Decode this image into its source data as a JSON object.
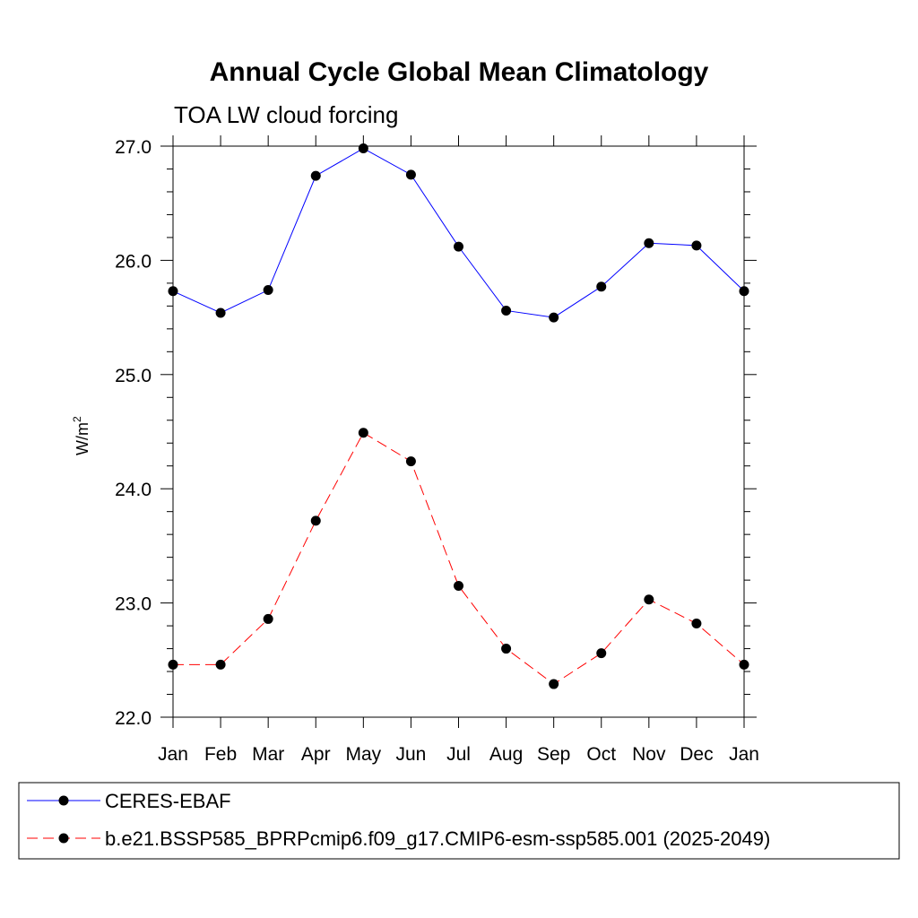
{
  "chart_data": {
    "type": "line",
    "title": "Annual Cycle Global Mean Climatology",
    "subtitle": "TOA LW cloud forcing",
    "ylabel": "W/m",
    "ylabel_superscript": "2",
    "xlabel": "",
    "categories": [
      "Jan",
      "Feb",
      "Mar",
      "Apr",
      "May",
      "Jun",
      "Jul",
      "Aug",
      "Sep",
      "Oct",
      "Nov",
      "Dec",
      "Jan"
    ],
    "ylim": [
      22.0,
      27.0
    ],
    "yticks": [
      "22.0",
      "23.0",
      "24.0",
      "25.0",
      "26.0",
      "27.0"
    ],
    "grid": false,
    "legend_position": "bottom",
    "series": [
      {
        "name": "CERES-EBAF",
        "color": "#0000ff",
        "style": "solid",
        "values": [
          25.73,
          25.54,
          25.74,
          26.74,
          26.98,
          26.75,
          26.12,
          25.56,
          25.5,
          25.77,
          26.15,
          26.13,
          25.73
        ]
      },
      {
        "name": "b.e21.BSSP585_BPRPcmip6.f09_g17.CMIP6-esm-ssp585.001 (2025-2049)",
        "color": "#ff0000",
        "style": "dashed",
        "values": [
          22.46,
          22.46,
          22.86,
          23.72,
          24.49,
          24.24,
          23.15,
          22.6,
          22.29,
          22.56,
          23.03,
          22.82,
          22.46
        ]
      }
    ]
  }
}
